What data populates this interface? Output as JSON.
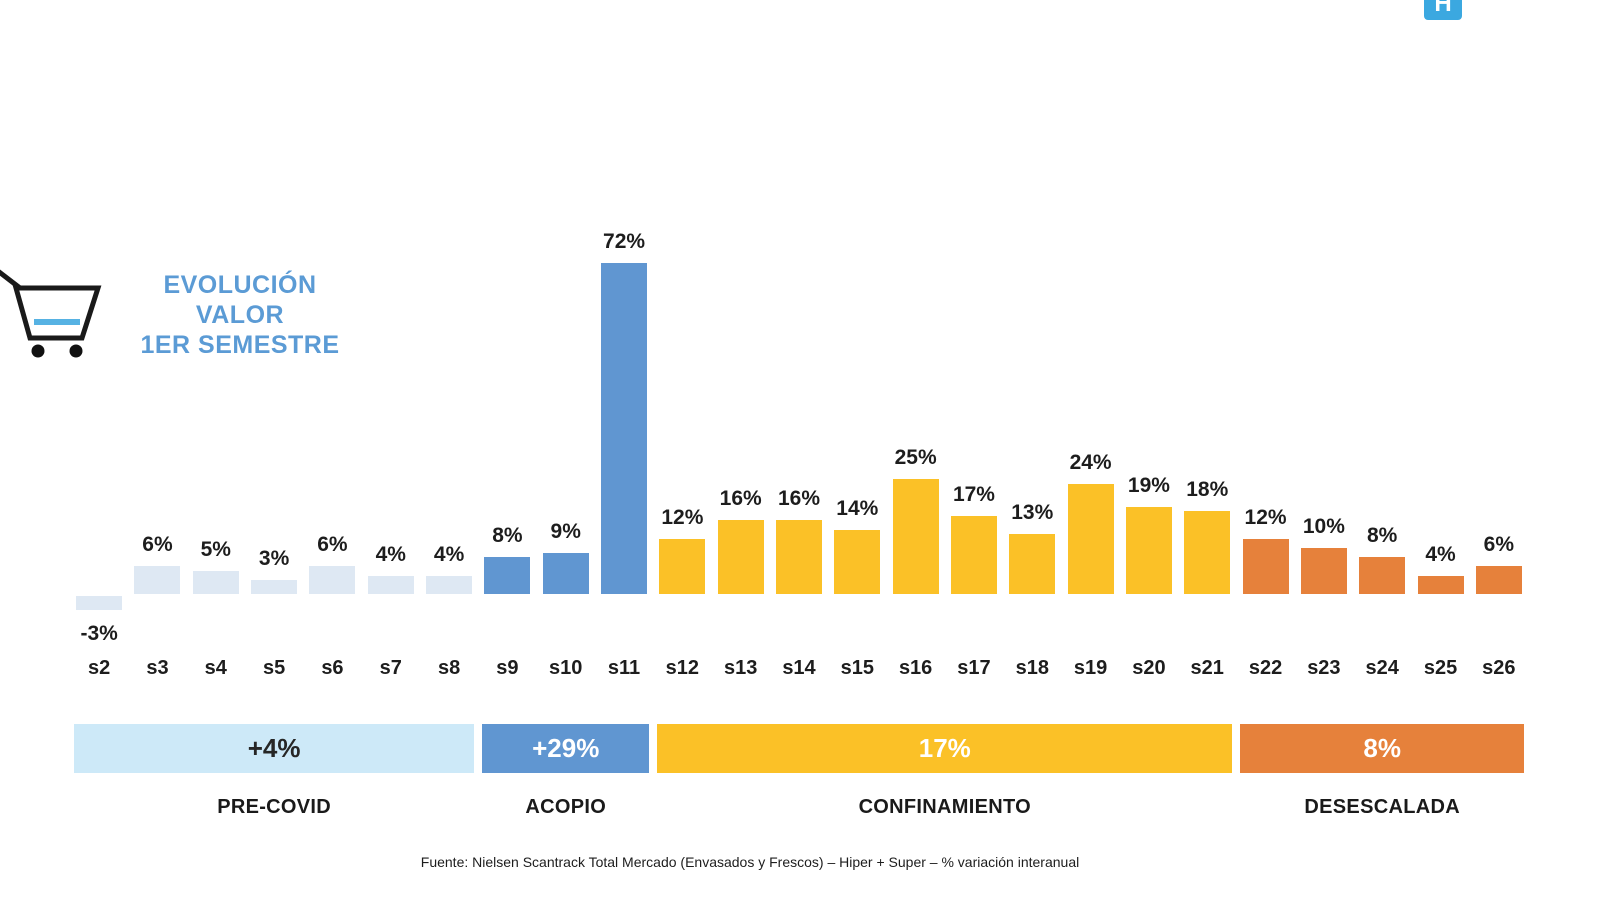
{
  "logo": {
    "label": "H",
    "bg_color": "#3BA8E0"
  },
  "title": {
    "lines": [
      "EVOLUCIÓN",
      "VALOR",
      "1ER SEMESTRE"
    ],
    "color": "#5B9BD5"
  },
  "chart_data": {
    "type": "bar",
    "title": "EVOLUCIÓN VALOR 1ER SEMESTRE",
    "categories": [
      "s2",
      "s3",
      "s4",
      "s5",
      "s6",
      "s7",
      "s8",
      "s9",
      "s10",
      "s11",
      "s12",
      "s13",
      "s14",
      "s15",
      "s16",
      "s17",
      "s18",
      "s19",
      "s20",
      "s21",
      "s22",
      "s23",
      "s24",
      "s25",
      "s26"
    ],
    "values": [
      -3,
      6,
      5,
      3,
      6,
      4,
      4,
      8,
      9,
      72,
      12,
      16,
      16,
      14,
      25,
      17,
      13,
      24,
      19,
      18,
      12,
      10,
      8,
      4,
      6
    ],
    "unit": "%",
    "ylim": [
      -5,
      80
    ],
    "grid": false,
    "legend": false,
    "value_labels": "outside",
    "phases": [
      {
        "name": "PRE-COVID",
        "summary": "+4%",
        "from": 0,
        "to": 6,
        "bar_color": "#DEE8F3",
        "band_color": "#CDE9F8",
        "band_text_color": "#262626"
      },
      {
        "name": "ACOPIO",
        "summary": "+29%",
        "from": 7,
        "to": 9,
        "bar_color": "#6096D1",
        "band_color": "#6096D1",
        "band_text_color": "#FFFFFF"
      },
      {
        "name": "CONFINAMIENTO",
        "summary": "17%",
        "from": 10,
        "to": 19,
        "bar_color": "#FBC127",
        "band_color": "#FBC127",
        "band_text_color": "#FFFFFF"
      },
      {
        "name": "DESESCALADA",
        "summary": "8%",
        "from": 20,
        "to": 24,
        "bar_color": "#E6813B",
        "band_color": "#E6813B",
        "band_text_color": "#FFFFFF"
      }
    ]
  },
  "footer": {
    "source": "Fuente: Nielsen Scantrack Total Mercado (Envasados y Frescos) – Hiper + Super – % variación interanual"
  }
}
